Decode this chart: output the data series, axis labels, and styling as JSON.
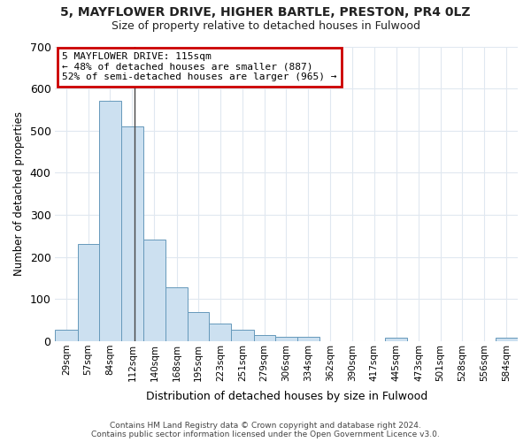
{
  "title1": "5, MAYFLOWER DRIVE, HIGHER BARTLE, PRESTON, PR4 0LZ",
  "title2": "Size of property relative to detached houses in Fulwood",
  "xlabel": "Distribution of detached houses by size in Fulwood",
  "ylabel": "Number of detached properties",
  "footnote1": "Contains HM Land Registry data © Crown copyright and database right 2024.",
  "footnote2": "Contains public sector information licensed under the Open Government Licence v3.0.",
  "annotation_line1": "5 MAYFLOWER DRIVE: 115sqm",
  "annotation_line2": "← 48% of detached houses are smaller (887)",
  "annotation_line3": "52% of semi-detached houses are larger (965) →",
  "subject_size": 115,
  "bar_color": "#cce0f0",
  "bar_edge_color": "#6699bb",
  "subject_line_color": "#444444",
  "annotation_box_edge_color": "#cc0000",
  "background_color": "#ffffff",
  "grid_color": "#e0e8f0",
  "categories": [
    "29sqm",
    "57sqm",
    "84sqm",
    "112sqm",
    "140sqm",
    "168sqm",
    "195sqm",
    "223sqm",
    "251sqm",
    "279sqm",
    "306sqm",
    "334sqm",
    "362sqm",
    "390sqm",
    "417sqm",
    "445sqm",
    "473sqm",
    "501sqm",
    "528sqm",
    "556sqm",
    "584sqm"
  ],
  "bin_edges": [
    15,
    43,
    70,
    98,
    126,
    154,
    182,
    209,
    237,
    265,
    292,
    320,
    348,
    376,
    403,
    431,
    459,
    487,
    514,
    542,
    570,
    598
  ],
  "values": [
    28,
    230,
    570,
    510,
    242,
    127,
    70,
    41,
    27,
    14,
    10,
    11,
    0,
    0,
    0,
    8,
    0,
    0,
    0,
    0,
    8
  ],
  "ylim": [
    0,
    700
  ],
  "yticks": [
    0,
    100,
    200,
    300,
    400,
    500,
    600,
    700
  ]
}
